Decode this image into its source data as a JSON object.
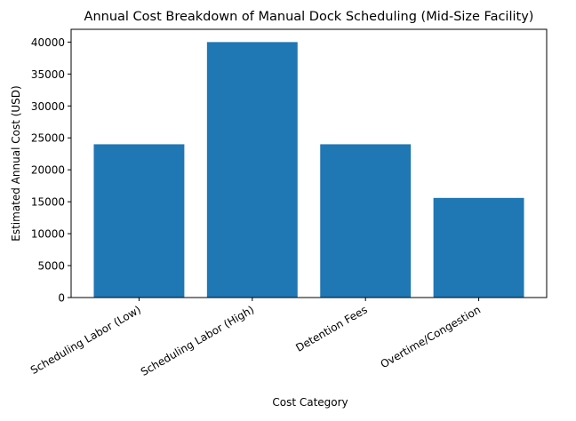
{
  "chart_data": {
    "type": "bar",
    "title": "Annual Cost Breakdown of Manual Dock Scheduling (Mid-Size Facility)",
    "xlabel": "Cost Category",
    "ylabel": "Estimated Annual Cost (USD)",
    "categories": [
      "Scheduling Labor (Low)",
      "Scheduling Labor (High)",
      "Detention Fees",
      "Overtime/Congestion"
    ],
    "values": [
      24000,
      40000,
      24000,
      15600
    ],
    "ylim": [
      0,
      42000
    ],
    "yticks": [
      "0",
      "5000",
      "10000",
      "15000",
      "20000",
      "25000",
      "30000",
      "35000",
      "40000"
    ],
    "grid": false,
    "bar_color": "#1f77b4"
  }
}
